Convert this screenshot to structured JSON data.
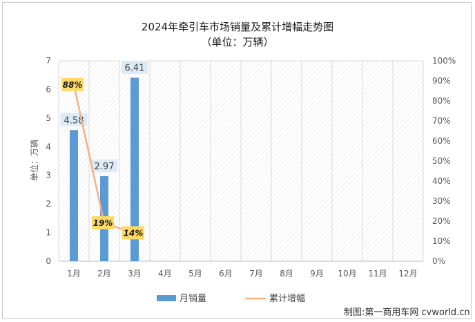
{
  "chart_data": {
    "type": "bar+line",
    "title": "2024年牵引车市场销量及累计增幅走势图",
    "subtitle": "（单位：万辆）",
    "categories": [
      "1月",
      "2月",
      "3月",
      "4月",
      "5月",
      "6月",
      "7月",
      "8月",
      "9月",
      "10月",
      "11月",
      "12月"
    ],
    "series": [
      {
        "name": "月销量",
        "type": "bar",
        "axis": "left",
        "color": "#5b9bd5",
        "values": [
          4.58,
          2.97,
          6.41,
          null,
          null,
          null,
          null,
          null,
          null,
          null,
          null,
          null
        ],
        "labels": [
          "4.58",
          "2.97",
          "6.41"
        ]
      },
      {
        "name": "累计增幅",
        "type": "line",
        "axis": "right",
        "color": "#f4b183",
        "values": [
          88,
          19,
          14,
          null,
          null,
          null,
          null,
          null,
          null,
          null,
          null,
          null
        ],
        "labels": [
          "88%",
          "19%",
          "14%"
        ]
      }
    ],
    "ylabel": "单位：万辆",
    "ylim": [
      0,
      7
    ],
    "yticks": [
      "0",
      "1",
      "2",
      "3",
      "4",
      "5",
      "6",
      "7"
    ],
    "y2lim": [
      0,
      100
    ],
    "y2ticks": [
      "0%",
      "10%",
      "20%",
      "30%",
      "40%",
      "50%",
      "60%",
      "70%",
      "80%",
      "90%",
      "100%"
    ],
    "plot_background": "diagonal-hatch",
    "legend_position": "bottom"
  },
  "watermark": "制图:第一商用车网 cvworld.cn"
}
